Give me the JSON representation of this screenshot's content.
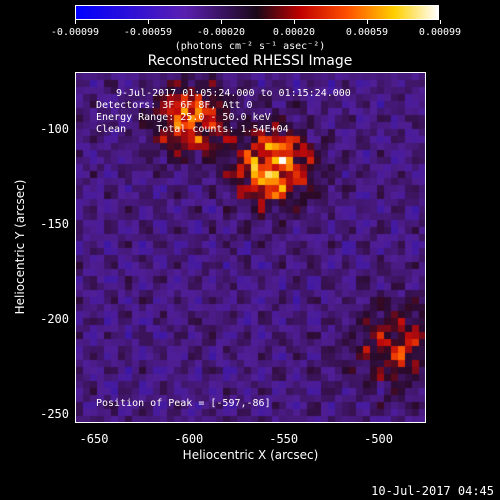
{
  "colorbar": {
    "ticks": [
      "-0.00099",
      "-0.00059",
      "-0.00020",
      "0.00020",
      "0.00059",
      "0.00099"
    ],
    "units": "(photons cm⁻² s⁻¹ asec⁻²)"
  },
  "title": "Reconstructed RHESSI Image",
  "annotations": {
    "time_range": "9-Jul-2017 01:05:24.000 to 01:15:24.000",
    "detectors": "Detectors: 3F 6F 8F, Att 0",
    "energy": "Energy Range: 25.0 - 50.0 keV",
    "clean": "Clean     Total counts: 1.54E+04",
    "peak": "Position of Peak = [-597,-86]"
  },
  "axes": {
    "xlabel": "Heliocentric X (arcsec)",
    "ylabel": "Heliocentric Y (arcsec)",
    "xticks": [
      "-650",
      "-600",
      "-550",
      "-500"
    ],
    "yticks": [
      "-100",
      "-150",
      "-200",
      "-250"
    ]
  },
  "footer": "10-Jul-2017 04:45",
  "chart_data": {
    "type": "heatmap",
    "title": "Reconstructed RHESSI Image",
    "xlabel": "Heliocentric X (arcsec)",
    "ylabel": "Heliocentric Y (arcsec)",
    "xlim": [
      -660,
      -475
    ],
    "ylim": [
      -255,
      -70
    ],
    "colorbar_range": [
      -0.00099,
      0.00099
    ],
    "peak": [
      -597,
      -86
    ],
    "sources": [
      {
        "x": -600,
        "y": -95,
        "strength": 0.85,
        "width": 18
      },
      {
        "x": -555,
        "y": -120,
        "strength": 1.0,
        "width": 20
      },
      {
        "x": -490,
        "y": -215,
        "strength": 0.55,
        "width": 22
      }
    ]
  }
}
